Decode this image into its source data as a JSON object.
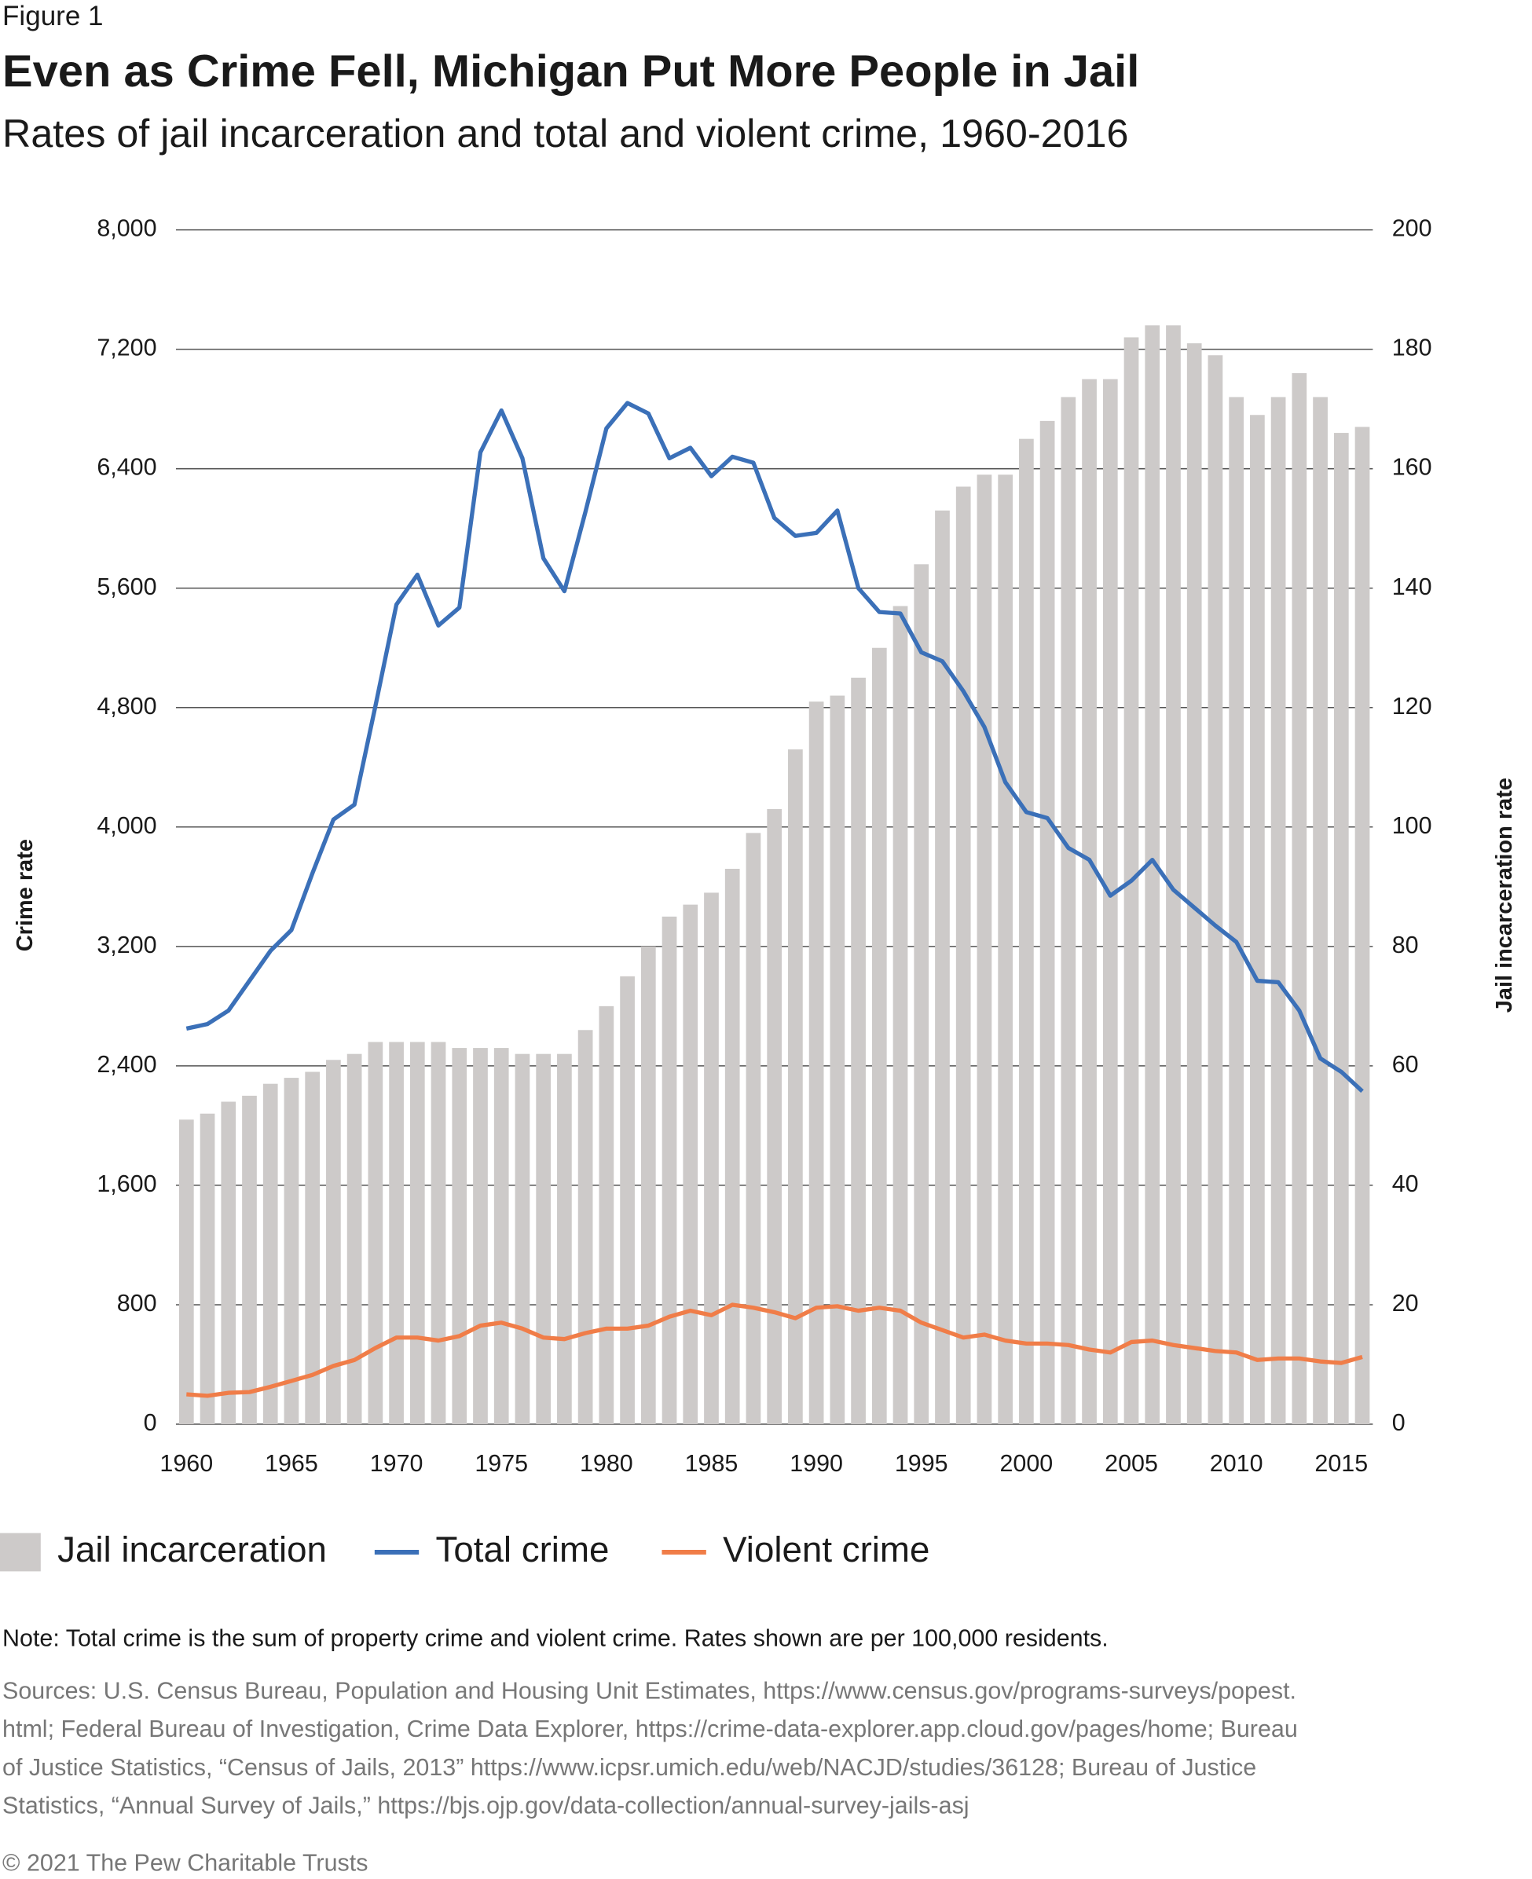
{
  "chart_data": {
    "type": "combo",
    "figure_label": "Figure 1",
    "title": "Even as Crime Fell, Michigan Put More People in Jail",
    "subtitle": "Rates of jail incarceration and total and violent crime, 1960-2016",
    "y_label": "Crime rate",
    "y2_label": "Jail incarceration rate",
    "categories": [
      "1960",
      null,
      null,
      null,
      null,
      "1965",
      null,
      null,
      null,
      null,
      "1970",
      null,
      null,
      null,
      null,
      "1975",
      null,
      null,
      null,
      null,
      "1980",
      null,
      null,
      null,
      null,
      "1985",
      null,
      null,
      null,
      null,
      "1990",
      null,
      null,
      null,
      null,
      "1995",
      null,
      null,
      null,
      null,
      "2000",
      null,
      null,
      null,
      null,
      "2005",
      null,
      null,
      null,
      null,
      "2010",
      null,
      null,
      null,
      null,
      "2015",
      null
    ],
    "ylim": [
      0,
      8000
    ],
    "yticks": [
      0,
      800,
      {
        "value": 1600,
        "label": "1,600"
      },
      {
        "value": 2400,
        "label": "2,400"
      },
      {
        "value": 3200,
        "label": "3,200"
      },
      {
        "value": 4000,
        "label": "4,000"
      },
      {
        "value": 4800,
        "label": "4,800"
      },
      {
        "value": 5600,
        "label": "5,600"
      },
      {
        "value": 6400,
        "label": "6,400"
      },
      {
        "value": 7200,
        "label": "7,200"
      },
      {
        "value": 8000,
        "label": "8,000"
      }
    ],
    "y2lim": [
      0,
      200
    ],
    "y2ticks": [
      0,
      20,
      40,
      60,
      80,
      100,
      120,
      140,
      160,
      180,
      200
    ],
    "grid": true,
    "series": [
      {
        "name": "Jail incarceration",
        "type": "bar",
        "axis": "y2",
        "color": "#cdcac9",
        "values": [
          51,
          52,
          54,
          55,
          57,
          58,
          59,
          61,
          62,
          64,
          64,
          64,
          64,
          63,
          63,
          63,
          62,
          62,
          62,
          66,
          70,
          75,
          80,
          85,
          87,
          89,
          93,
          99,
          103,
          113,
          121,
          122,
          125,
          130,
          137,
          144,
          153,
          157,
          159,
          159,
          165,
          168,
          172,
          175,
          175,
          182,
          184,
          184,
          181,
          179,
          172,
          169,
          172,
          176,
          172,
          166,
          167
        ]
      },
      {
        "name": "Total crime",
        "type": "line",
        "color": "#3b70b8",
        "values": [
          2650,
          2680,
          2770,
          2970,
          3170,
          3310,
          3690,
          4050,
          4150,
          4810,
          5490,
          5690,
          5350,
          5470,
          6510,
          6790,
          6470,
          5800,
          5580,
          6110,
          6670,
          6840,
          6770,
          6470,
          6540,
          6350,
          6480,
          6440,
          6070,
          5950,
          5970,
          6120,
          5600,
          5440,
          5430,
          5170,
          5110,
          4910,
          4670,
          4300,
          4100,
          4060,
          3860,
          3780,
          3540,
          3640,
          3780,
          3580,
          3460,
          3340,
          3230,
          2970,
          2960,
          2770,
          2450,
          2360,
          2230
        ]
      },
      {
        "name": "Violent crime",
        "type": "line",
        "color": "#f07d48",
        "values": [
          200,
          190,
          210,
          215,
          250,
          290,
          330,
          390,
          430,
          510,
          580,
          580,
          560,
          590,
          660,
          680,
          640,
          580,
          570,
          610,
          640,
          640,
          660,
          720,
          760,
          730,
          800,
          780,
          750,
          710,
          780,
          790,
          760,
          780,
          760,
          680,
          630,
          580,
          600,
          560,
          540,
          540,
          530,
          500,
          480,
          550,
          560,
          530,
          510,
          490,
          480,
          430,
          440,
          440,
          420,
          410,
          450
        ]
      }
    ],
    "note": "Note: Total crime is the sum of property crime and violent crime. Rates shown are per 100,000 residents.",
    "sources": [
      "Sources: U.S. Census Bureau, Population and Housing Unit Estimates, https://www.census.gov/programs-surveys/popest.",
      "html; Federal Bureau of Investigation, Crime Data Explorer, https://crime-data-explorer.app.cloud.gov/pages/home; Bureau",
      "of Justice Statistics, “Census of Jails, 2013” https://www.icpsr.umich.edu/web/NACJD/studies/36128; Bureau of Justice",
      "Statistics, “Annual Survey of Jails,” https://bjs.ojp.gov/data-collection/annual-survey-jails-asj"
    ],
    "copyright": "© 2021 The Pew Charitable Trusts"
  }
}
